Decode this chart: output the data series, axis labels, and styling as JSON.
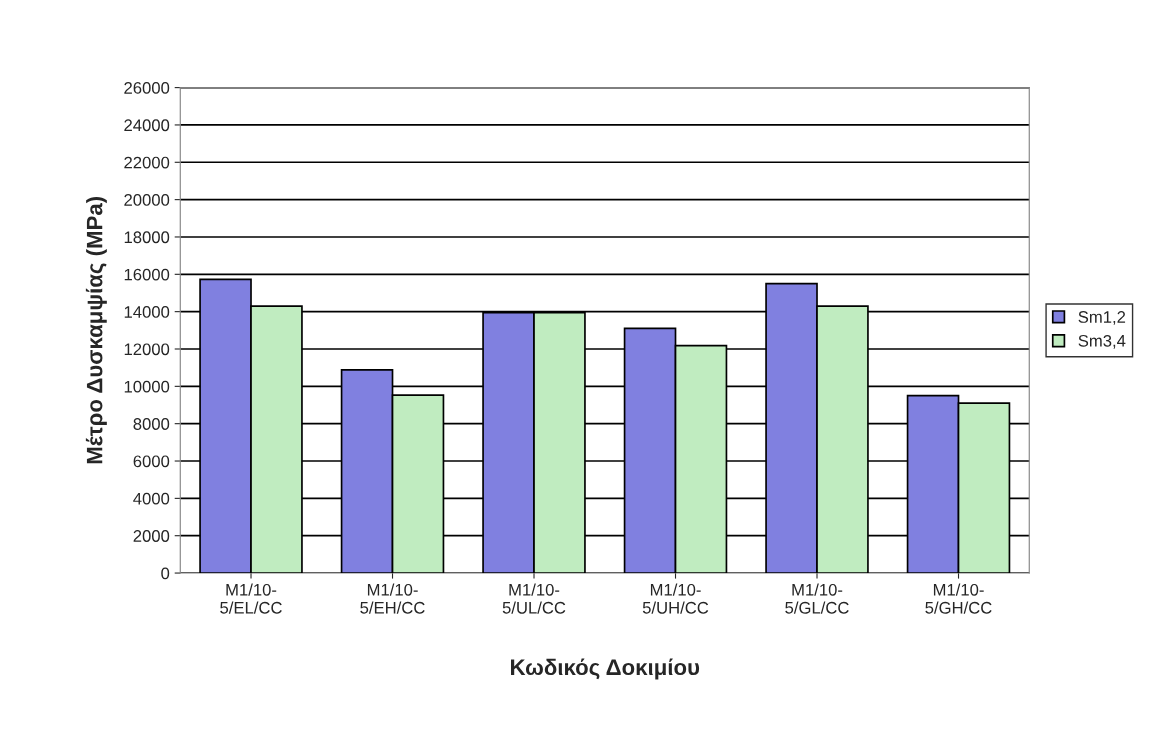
{
  "chart_data": {
    "type": "bar",
    "xlabel": "Κωδικός Δοκιμίου",
    "ylabel": "Μέτρο Δυσκαμψίας (MPa)",
    "categories": [
      "M1/10-\n5/EL/CC",
      "M1/10-\n5/EH/CC",
      "M1/10-\n5/UL/CC",
      "M1/10-\n5/UH/CC",
      "M1/10-\n5/GL/CC",
      "M1/10-\n5/GH/CC"
    ],
    "series": [
      {
        "name": "Sm1,2",
        "color": "#8080e0",
        "values": [
          15730,
          10880,
          13950,
          13100,
          15500,
          9500
        ]
      },
      {
        "name": "Sm3,4",
        "color": "#c0ecc0",
        "values": [
          14300,
          9530,
          13950,
          12180,
          14300,
          9100
        ]
      }
    ],
    "ylim": [
      0,
      26000
    ],
    "yticks": [
      0,
      2000,
      4000,
      6000,
      8000,
      10000,
      12000,
      14000,
      16000,
      18000,
      20000,
      22000,
      24000,
      26000
    ],
    "grid": "y",
    "legend": "right"
  }
}
